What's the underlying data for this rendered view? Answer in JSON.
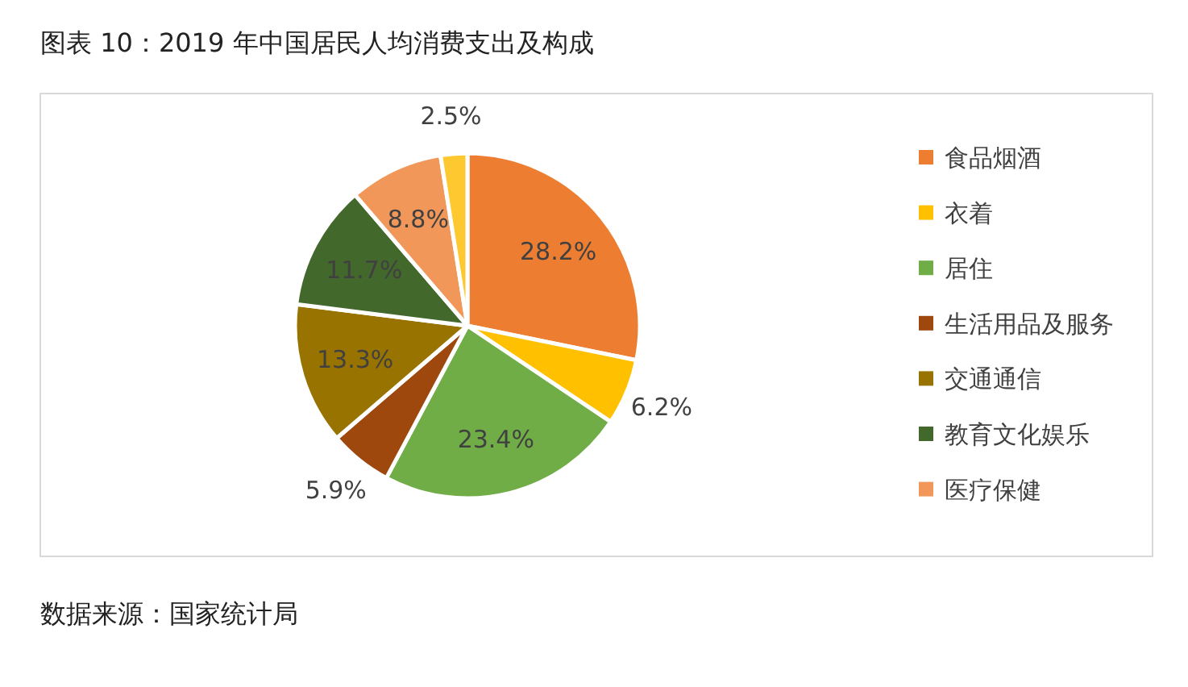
{
  "chart_data": {
    "type": "pie",
    "title": "图表 10：2019 年中国居民人均消费支出及构成",
    "categories": [
      "食品烟酒",
      "衣着",
      "居住",
      "生活用品及服务",
      "交通通信",
      "教育文化娱乐",
      "医疗保健",
      null
    ],
    "values": [
      28.2,
      6.2,
      23.4,
      5.9,
      13.3,
      11.7,
      8.8,
      2.5
    ],
    "colors": [
      "#ed7d31",
      "#ffc000",
      "#70ad47",
      "#9e480e",
      "#997300",
      "#43682b",
      "#f1975a",
      "#fdc830"
    ],
    "value_labels": [
      "28.2%",
      "6.2%",
      "23.4%",
      "5.9%",
      "13.3%",
      "11.7%",
      "8.8%",
      "2.5%"
    ],
    "legend": "right",
    "annotations": [
      "数据来源：国家统计局"
    ]
  }
}
